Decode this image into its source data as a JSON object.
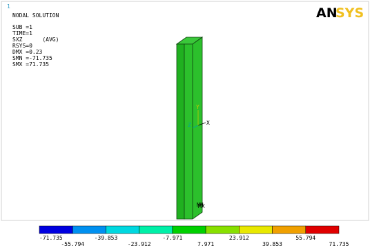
{
  "window_number": "1",
  "info": [
    "NODAL SOLUTION",
    "SUB =1",
    "TIME=1",
    "SXZ      (AVG)",
    "RSYS=0",
    "DMX =0.23",
    "SMN =-71.735",
    "SMX =71.735"
  ],
  "logo": {
    "left": "AN",
    "right": "SYS"
  },
  "triad": {
    "x": "X",
    "y": "Y",
    "z": "Z"
  },
  "markers": {
    "min": "MN",
    "max": "MX"
  },
  "legend": {
    "colors": [
      "#0000e0",
      "#0090f0",
      "#00d8e0",
      "#00f0a8",
      "#00d000",
      "#88e000",
      "#e8e800",
      "#f0a000",
      "#e00000"
    ],
    "labels": [
      "-71.735",
      "-55.794",
      "-39.853",
      "-23.912",
      "-7.971",
      "7.971",
      "23.912",
      "39.853",
      "55.794",
      "71.735"
    ]
  }
}
